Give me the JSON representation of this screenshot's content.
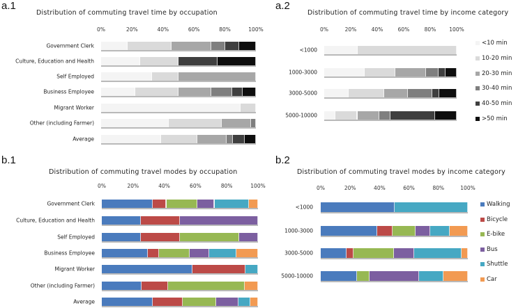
{
  "chart_data": [
    {
      "id": "a1",
      "panel_label": "a.1",
      "type": "bar",
      "orientation": "horizontal",
      "stacked": "percent",
      "title": "Distribution of  commuting  travel time by occupation",
      "xticks": [
        "0%",
        "20%",
        "40%",
        "60%",
        "80%",
        "100%"
      ],
      "xlim": [
        0,
        100
      ],
      "categories": [
        "Government Clerk",
        "Culture, Education and Health",
        "Self Employed",
        "Business Employee",
        "Migrant Worker",
        "Other (including Farmer)",
        "Average"
      ],
      "series": [
        {
          "name": "<10 min",
          "color": "#f4f4f4",
          "values": [
            17,
            25,
            33,
            22,
            90,
            43.5,
            38.6
          ]
        },
        {
          "name": "10-20 min",
          "color": "#dadada",
          "values": [
            28.5,
            25,
            17,
            28,
            10,
            34.5,
            23.5
          ]
        },
        {
          "name": "20-30 min",
          "color": "#a7a7a7",
          "values": [
            25.5,
            0,
            50,
            21,
            0,
            19,
            19
          ]
        },
        {
          "name": "30-40 min",
          "color": "#7f7f7f",
          "values": [
            9,
            0,
            0,
            13.5,
            0,
            3,
            4.2
          ]
        },
        {
          "name": "40-50 min",
          "color": "#3f3f3f",
          "values": [
            9,
            25,
            0,
            7,
            0,
            0,
            7.4
          ]
        },
        {
          "name": ">50 min",
          "color": "#0e0e0e",
          "values": [
            11,
            25,
            0,
            8.5,
            0,
            0,
            7.3
          ]
        }
      ],
      "legend": "none"
    },
    {
      "id": "a2",
      "panel_label": "a.2",
      "type": "bar",
      "orientation": "horizontal",
      "stacked": "percent",
      "title": "Distribution of  commuting  travel time by income category",
      "xticks": [
        "0%",
        "20%",
        "40%",
        "60%",
        "80%",
        "100%"
      ],
      "xlim": [
        0,
        100
      ],
      "categories": [
        "<1000",
        "1000-3000",
        "3000-5000",
        "5000-10000"
      ],
      "series": [
        {
          "name": "<10 min",
          "color": "#f4f4f4",
          "values": [
            25,
            30.3,
            18.3,
            8.3
          ]
        },
        {
          "name": "10-20 min",
          "color": "#dadada",
          "values": [
            75,
            23.4,
            27,
            16.7
          ]
        },
        {
          "name": "20-30 min",
          "color": "#a7a7a7",
          "values": [
            0,
            23.2,
            18,
            16.4
          ]
        },
        {
          "name": "30-40 min",
          "color": "#7f7f7f",
          "values": [
            0,
            9.4,
            18.3,
            8.6
          ]
        },
        {
          "name": "40-50 min",
          "color": "#3f3f3f",
          "values": [
            0,
            5.2,
            5,
            33.5
          ]
        },
        {
          "name": ">50 min",
          "color": "#0e0e0e",
          "values": [
            0,
            8.5,
            13.4,
            16.5
          ]
        }
      ],
      "legend": "right"
    },
    {
      "id": "b1",
      "panel_label": "b.1",
      "type": "bar",
      "orientation": "horizontal",
      "stacked": "percent",
      "title": "Distribution of  commuting  travel modes by occupation",
      "xticks": [
        "0%",
        "20%",
        "40%",
        "60%",
        "80%",
        "100%"
      ],
      "xlim": [
        0,
        100
      ],
      "categories": [
        "Government Clerk",
        "Culture, Education and Health",
        "Self Employed",
        "Business Employee",
        "Migrant Worker",
        "Other (including Farmer)",
        "Average"
      ],
      "series": [
        {
          "name": "Walking",
          "color": "#4a7bbd",
          "values": [
            32.7,
            25,
            25,
            29.3,
            58,
            25.3,
            32.4
          ]
        },
        {
          "name": "Bicycle",
          "color": "#bc4a47",
          "values": [
            8.6,
            25,
            25,
            7.1,
            34,
            17,
            19.5
          ]
        },
        {
          "name": "E-bike",
          "color": "#97b853",
          "values": [
            19.8,
            0,
            38,
            19.8,
            0,
            49.2,
            21.1
          ]
        },
        {
          "name": "Bus",
          "color": "#7c5fa0",
          "values": [
            11,
            50,
            12,
            12.6,
            0,
            0,
            14.4
          ]
        },
        {
          "name": "Shuttle",
          "color": "#46a8c3",
          "values": [
            22.3,
            0,
            0,
            17.4,
            8,
            0,
            7.8
          ]
        },
        {
          "name": "Car",
          "color": "#f29a52",
          "values": [
            5.6,
            0,
            0,
            13.8,
            0,
            8.5,
            4.8
          ]
        }
      ],
      "legend": "none"
    },
    {
      "id": "b2",
      "panel_label": "b.2",
      "type": "bar",
      "orientation": "horizontal",
      "stacked": "percent",
      "title": "Distribution of  commuting  travel modes by income category",
      "xticks": [
        "0%",
        "20%",
        "40%",
        "60%",
        "80%",
        "100%"
      ],
      "xlim": [
        0,
        100
      ],
      "categories": [
        "<1000",
        "1000-3000",
        "3000-5000",
        "5000-10000"
      ],
      "series": [
        {
          "name": "Walking",
          "color": "#4a7bbd",
          "values": [
            50,
            38.5,
            17.4,
            24.5
          ]
        },
        {
          "name": "Bicycle",
          "color": "#bc4a47",
          "values": [
            0,
            10.2,
            4.7,
            0
          ]
        },
        {
          "name": "E-bike",
          "color": "#97b853",
          "values": [
            0,
            15.8,
            27.8,
            8.5
          ]
        },
        {
          "name": "Bus",
          "color": "#7c5fa0",
          "values": [
            0,
            9.8,
            13.8,
            33.7
          ]
        },
        {
          "name": "Shuttle",
          "color": "#46a8c3",
          "values": [
            50,
            13.6,
            32,
            16.9
          ]
        },
        {
          "name": "Car",
          "color": "#f29a52",
          "values": [
            0,
            12.1,
            4.3,
            16.4
          ]
        }
      ],
      "legend": "right"
    }
  ]
}
